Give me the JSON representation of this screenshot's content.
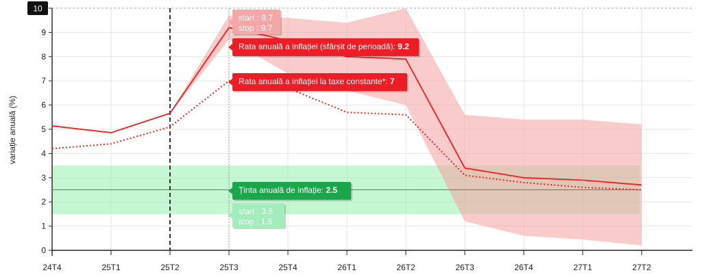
{
  "chart_data": {
    "type": "line",
    "ylabel": "variație anuală (%)",
    "ylim": [
      0,
      10
    ],
    "yticks": [
      0,
      1,
      2,
      3,
      4,
      5,
      6,
      7,
      8,
      9,
      10
    ],
    "categories": [
      "24T4",
      "25T1",
      "25T2",
      "25T3",
      "25T4",
      "26T1",
      "26T2",
      "26T3",
      "26T4",
      "27T1",
      "27T2"
    ],
    "series": [
      {
        "key": "headline",
        "values": [
          5.14,
          4.86,
          5.66,
          9.2,
          8.67,
          8.0,
          7.9,
          3.4,
          3.0,
          2.9,
          2.7
        ],
        "color": "#ff1a1a",
        "dash": "solid"
      },
      {
        "key": "constant_taxes",
        "values": [
          4.2,
          4.4,
          5.1,
          7.0,
          6.7,
          5.7,
          5.6,
          3.1,
          2.8,
          2.6,
          2.5
        ],
        "color": "#ff1a1a",
        "dash": "dotted"
      }
    ],
    "uncertainty_band": {
      "color": "#f5a0a0",
      "x_start": 2,
      "lower": [
        5.66,
        8.7,
        7.3,
        6.6,
        6.0,
        1.2,
        0.6,
        0.45,
        0.2
      ],
      "upper": [
        5.66,
        9.7,
        9.6,
        9.4,
        10.0,
        5.6,
        5.4,
        5.4,
        5.2
      ]
    },
    "target": {
      "value": 2.5,
      "band_lower": 1.5,
      "band_upper": 3.5,
      "color": "#1aa64b"
    },
    "vertical_marker": {
      "category": "25T2",
      "style": "dashed"
    },
    "hover_category": "25T3",
    "y_axis_badge": "10",
    "tooltips": {
      "band_top": {
        "start_label": "start : ",
        "start_value": "8.7",
        "stop_label": "stop : ",
        "stop_value": "9.7"
      },
      "headline": {
        "label": "Rata anuală a inflației (sfârșit de perioadă): ",
        "value": "9.2"
      },
      "constant": {
        "label": "Rata anuală a inflației la taxe constante*: ",
        "value": "7"
      },
      "target": {
        "label": "Ținta anuală de inflație: ",
        "value": "2.5"
      },
      "band_target": {
        "start_label": "start : ",
        "start_value": "3.5",
        "stop_label": "stop : ",
        "stop_value": "1.5"
      }
    }
  }
}
